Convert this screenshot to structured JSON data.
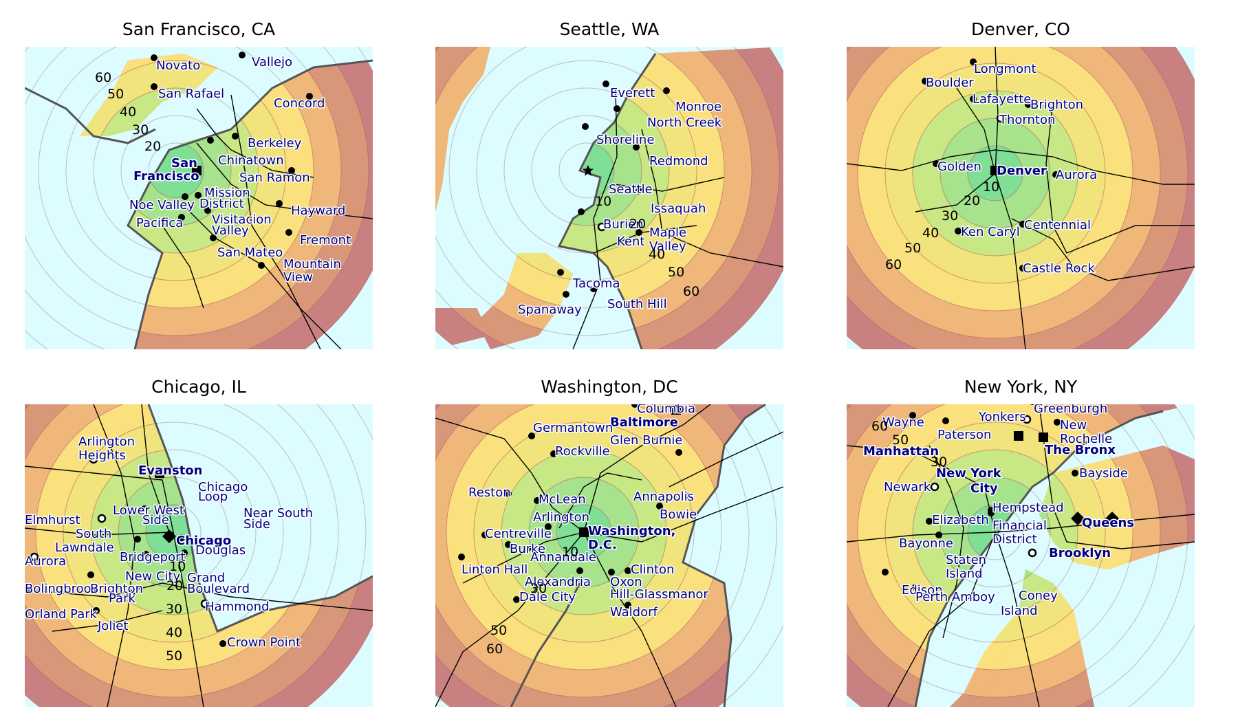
{
  "colors": {
    "ring_fills": [
      "#7fdf95",
      "#a6e38c",
      "#c7e884",
      "#f2e47c",
      "#fbe07e",
      "#efb87a",
      "#d9977a",
      "#c98081"
    ],
    "water": "#ddfcff",
    "label": "#000080",
    "roads": "#000000"
  },
  "panels": [
    {
      "title": "San Francisco, CA",
      "distance_labels": [
        "20",
        "30",
        "40",
        "50",
        "60"
      ],
      "places": [
        {
          "name": "Novato",
          "marker": "dot"
        },
        {
          "name": "Vallejo",
          "marker": "dot"
        },
        {
          "name": "San Rafael",
          "marker": "dot"
        },
        {
          "name": "Concord",
          "marker": "dot"
        },
        {
          "name": "Berkeley",
          "marker": "dot"
        },
        {
          "name": "Chinatown",
          "marker": "dot"
        },
        {
          "name": "San",
          "marker": "square",
          "bold": true
        },
        {
          "name": "Francisco",
          "marker": "none",
          "bold": true
        },
        {
          "name": "San Ramon",
          "marker": "dot"
        },
        {
          "name": "Mission",
          "marker": "dot"
        },
        {
          "name": "District",
          "marker": "none"
        },
        {
          "name": "Noe Valley",
          "marker": "dot"
        },
        {
          "name": "Hayward",
          "marker": "dot"
        },
        {
          "name": "Pacifica",
          "marker": "dot"
        },
        {
          "name": "Visitacion",
          "marker": "dot"
        },
        {
          "name": "Valley",
          "marker": "none"
        },
        {
          "name": "Fremont",
          "marker": "dot"
        },
        {
          "name": "San Mateo",
          "marker": "dot"
        },
        {
          "name": "Mountain",
          "marker": "dot"
        },
        {
          "name": "View",
          "marker": "none"
        }
      ]
    },
    {
      "title": "Seattle, WA",
      "distance_labels": [
        "10",
        "20",
        "40",
        "50",
        "60"
      ],
      "places": [
        {
          "name": "Everett",
          "marker": "dot"
        },
        {
          "name": "Monroe",
          "marker": "dot"
        },
        {
          "name": "North Creek",
          "marker": "dot"
        },
        {
          "name": "Shoreline",
          "marker": "dot"
        },
        {
          "name": "Redmond",
          "marker": "dot"
        },
        {
          "name": "Seattle",
          "marker": "star"
        },
        {
          "name": "Issaquah",
          "marker": "dot"
        },
        {
          "name": "Burien",
          "marker": "dot"
        },
        {
          "name": "Kent",
          "marker": "ring"
        },
        {
          "name": "Maple",
          "marker": "dot"
        },
        {
          "name": "Valley",
          "marker": "none"
        },
        {
          "name": "Tacoma",
          "marker": "dot"
        },
        {
          "name": "South Hill",
          "marker": "dot"
        },
        {
          "name": "Spanaway",
          "marker": "dot"
        }
      ]
    },
    {
      "title": "Denver, CO",
      "distance_labels": [
        "10",
        "20",
        "30",
        "40",
        "50",
        "60"
      ],
      "places": [
        {
          "name": "Longmont",
          "marker": "dot"
        },
        {
          "name": "Boulder",
          "marker": "dot"
        },
        {
          "name": "Lafayette",
          "marker": "dot"
        },
        {
          "name": "Brighton",
          "marker": "dot"
        },
        {
          "name": "Thornton",
          "marker": "ring"
        },
        {
          "name": "Golden",
          "marker": "dot"
        },
        {
          "name": "Denver",
          "marker": "square",
          "bold": true
        },
        {
          "name": "Aurora",
          "marker": "dot"
        },
        {
          "name": "Ken Caryl",
          "marker": "dot"
        },
        {
          "name": "Centennial",
          "marker": "dot"
        },
        {
          "name": "Castle Rock",
          "marker": "dot"
        }
      ]
    },
    {
      "title": "Chicago, IL",
      "distance_labels": [
        "10",
        "20",
        "30",
        "40",
        "50"
      ],
      "places": [
        {
          "name": "Arlington",
          "marker": "ring"
        },
        {
          "name": "Heights",
          "marker": "none"
        },
        {
          "name": "Evanston",
          "marker": "square",
          "bold": true
        },
        {
          "name": "Chicago",
          "marker": "none"
        },
        {
          "name": "Loop",
          "marker": "none"
        },
        {
          "name": "Lower West",
          "marker": "dot"
        },
        {
          "name": "Side",
          "marker": "none"
        },
        {
          "name": "Near South",
          "marker": "none"
        },
        {
          "name": "Side",
          "marker": "none"
        },
        {
          "name": "Elmhurst",
          "marker": "none"
        },
        {
          "name": "South",
          "marker": "ring"
        },
        {
          "name": "Lawndale",
          "marker": "none"
        },
        {
          "name": "Chicago",
          "marker": "diamond",
          "bold": true
        },
        {
          "name": "Douglas",
          "marker": "dot"
        },
        {
          "name": "Aurora",
          "marker": "ring"
        },
        {
          "name": "Bridgeport",
          "marker": "dot"
        },
        {
          "name": "New City",
          "marker": "dot"
        },
        {
          "name": "Grand",
          "marker": "dot"
        },
        {
          "name": "Boulevard",
          "marker": "none"
        },
        {
          "name": "Bolingbrook",
          "marker": "dot"
        },
        {
          "name": "Brighton",
          "marker": "ring"
        },
        {
          "name": "Park",
          "marker": "none"
        },
        {
          "name": "Hammond",
          "marker": "ring"
        },
        {
          "name": "Orland Park",
          "marker": "dot"
        },
        {
          "name": "Joliet",
          "marker": "dot"
        },
        {
          "name": "Crown Point",
          "marker": "dot"
        }
      ]
    },
    {
      "title": "Washington, DC",
      "distance_labels": [
        "10",
        "30",
        "50",
        "60"
      ],
      "places": [
        {
          "name": "Columbia",
          "marker": "dot"
        },
        {
          "name": "Baltimore",
          "marker": "square",
          "bold": true
        },
        {
          "name": "Germantown",
          "marker": "dot"
        },
        {
          "name": "Glen Burnie",
          "marker": "dot"
        },
        {
          "name": "Rockville",
          "marker": "dot"
        },
        {
          "name": "Reston",
          "marker": "dot"
        },
        {
          "name": "McLean",
          "marker": "dot"
        },
        {
          "name": "Annapolis",
          "marker": "dot"
        },
        {
          "name": "Arlington",
          "marker": "dot"
        },
        {
          "name": "Bowie",
          "marker": "dot"
        },
        {
          "name": "Centreville",
          "marker": "dot"
        },
        {
          "name": "Washington,",
          "marker": "square",
          "bold": true
        },
        {
          "name": "D.C.",
          "marker": "none",
          "bold": true
        },
        {
          "name": "Burke",
          "marker": "dot"
        },
        {
          "name": "Annandale",
          "marker": "dot"
        },
        {
          "name": "Linton Hall",
          "marker": "dot"
        },
        {
          "name": "Clinton",
          "marker": "dot"
        },
        {
          "name": "Alexandria",
          "marker": "dot"
        },
        {
          "name": "Oxon",
          "marker": "dot"
        },
        {
          "name": "Hill-Glassmanor",
          "marker": "none"
        },
        {
          "name": "Dale City",
          "marker": "dot"
        },
        {
          "name": "Waldorf",
          "marker": "dot"
        }
      ]
    },
    {
      "title": "New York, NY",
      "distance_labels": [
        "30",
        "50",
        "60"
      ],
      "places": [
        {
          "name": "Greenburgh",
          "marker": "dot"
        },
        {
          "name": "Wayne",
          "marker": "dot"
        },
        {
          "name": "Yonkers",
          "marker": "ring"
        },
        {
          "name": "New",
          "marker": "dot"
        },
        {
          "name": "Rochelle",
          "marker": "none"
        },
        {
          "name": "Paterson",
          "marker": "dot"
        },
        {
          "name": "Manhattan",
          "marker": "square",
          "bold": true
        },
        {
          "name": "The Bronx",
          "marker": "square",
          "bold": true
        },
        {
          "name": "Bayside",
          "marker": "dot"
        },
        {
          "name": "Newark",
          "marker": "ring"
        },
        {
          "name": "New York",
          "marker": "diamond",
          "bold": true
        },
        {
          "name": "City",
          "marker": "none",
          "bold": true
        },
        {
          "name": "Hempstead",
          "marker": "dot"
        },
        {
          "name": "Queens",
          "marker": "diamond",
          "bold": true
        },
        {
          "name": "Elizabeth",
          "marker": "dot"
        },
        {
          "name": "Financial",
          "marker": "dot"
        },
        {
          "name": "District",
          "marker": "none"
        },
        {
          "name": "Bayonne",
          "marker": "dot"
        },
        {
          "name": "Brooklyn",
          "marker": "diamond",
          "bold": true
        },
        {
          "name": "Staten",
          "marker": "ring"
        },
        {
          "name": "Island",
          "marker": "none"
        },
        {
          "name": "Edison",
          "marker": "dot"
        },
        {
          "name": "Coney",
          "marker": "dot"
        },
        {
          "name": "Island",
          "marker": "none"
        },
        {
          "name": "Perth Amboy",
          "marker": "dot"
        }
      ]
    }
  ]
}
